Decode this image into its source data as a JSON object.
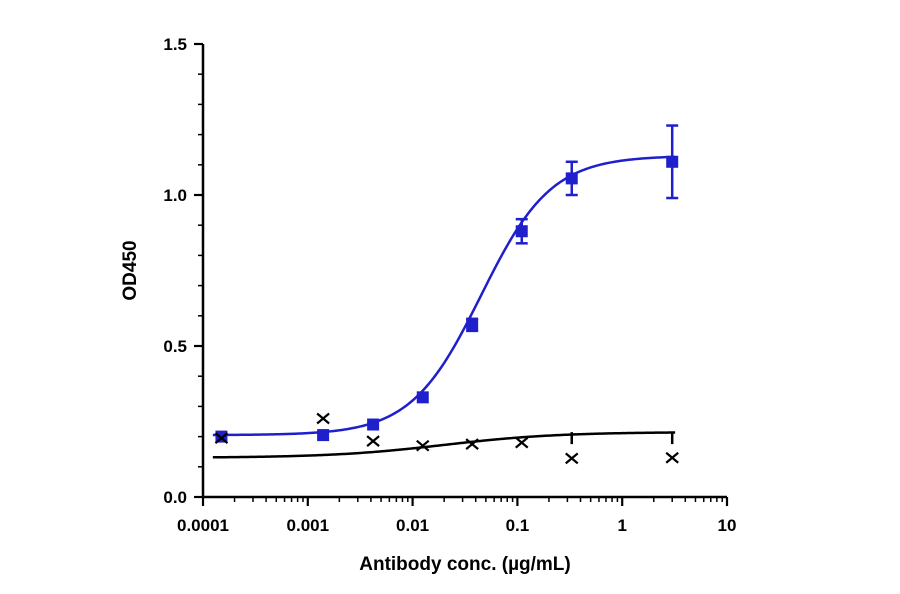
{
  "chart_data": {
    "type": "scatter",
    "xlabel": "Antibody conc. (µg/mL)",
    "ylabel": "OD450",
    "x_scale": "log",
    "xlim": [
      0.0001,
      10
    ],
    "ylim": [
      0.0,
      1.5
    ],
    "x_ticks": [
      {
        "value": 0.0001,
        "label": "0.0001"
      },
      {
        "value": 0.001,
        "label": "0.001"
      },
      {
        "value": 0.01,
        "label": "0.01"
      },
      {
        "value": 0.1,
        "label": "0.1"
      },
      {
        "value": 1,
        "label": "1"
      },
      {
        "value": 10,
        "label": "10"
      }
    ],
    "y_ticks": [
      {
        "value": 0.0,
        "label": "0.0"
      },
      {
        "value": 0.5,
        "label": "0.5"
      },
      {
        "value": 1.0,
        "label": "1.0"
      },
      {
        "value": 1.5,
        "label": "1.5"
      }
    ],
    "grid": false,
    "series": [
      {
        "color": "#1f1fcc",
        "marker": "square",
        "fit": "sigmoidal",
        "points": [
          {
            "x": 0.00015,
            "y": 0.2,
            "err": 0.005
          },
          {
            "x": 0.0014,
            "y": 0.205,
            "err": 0.005
          },
          {
            "x": 0.0042,
            "y": 0.24,
            "err": 0.005
          },
          {
            "x": 0.0125,
            "y": 0.33,
            "err": 0.008
          },
          {
            "x": 0.037,
            "y": 0.57,
            "err": 0.02
          },
          {
            "x": 0.11,
            "y": 0.88,
            "err": 0.04
          },
          {
            "x": 0.33,
            "y": 1.055,
            "err": 0.055
          },
          {
            "x": 3.0,
            "y": 1.11,
            "err": 0.12
          }
        ],
        "fit_params": {
          "bottom": 0.205,
          "top": 1.13,
          "ec50": 0.045,
          "hill": 1.3
        }
      },
      {
        "color": "#000000",
        "marker": "x",
        "fit": "sigmoidal",
        "points": [
          {
            "x": 0.00015,
            "y": 0.195,
            "err": 0.0
          },
          {
            "x": 0.0014,
            "y": 0.26,
            "err": 0.0
          },
          {
            "x": 0.0042,
            "y": 0.185,
            "err": 0.0
          },
          {
            "x": 0.0125,
            "y": 0.17,
            "err": 0.0
          },
          {
            "x": 0.037,
            "y": 0.175,
            "err": 0.0
          },
          {
            "x": 0.11,
            "y": 0.18,
            "err": 0.0
          },
          {
            "x": 0.33,
            "y": 0.128,
            "err": 0.0
          },
          {
            "x": 3.0,
            "y": 0.13,
            "err": 0.0
          }
        ],
        "extra_marks": [
          {
            "x": 0.33,
            "y": 0.195
          },
          {
            "x": 3.0,
            "y": 0.195
          }
        ],
        "fit_params": {
          "bottom": 0.13,
          "top": 0.215,
          "ec50": 0.02,
          "hill": 0.8
        }
      }
    ]
  }
}
